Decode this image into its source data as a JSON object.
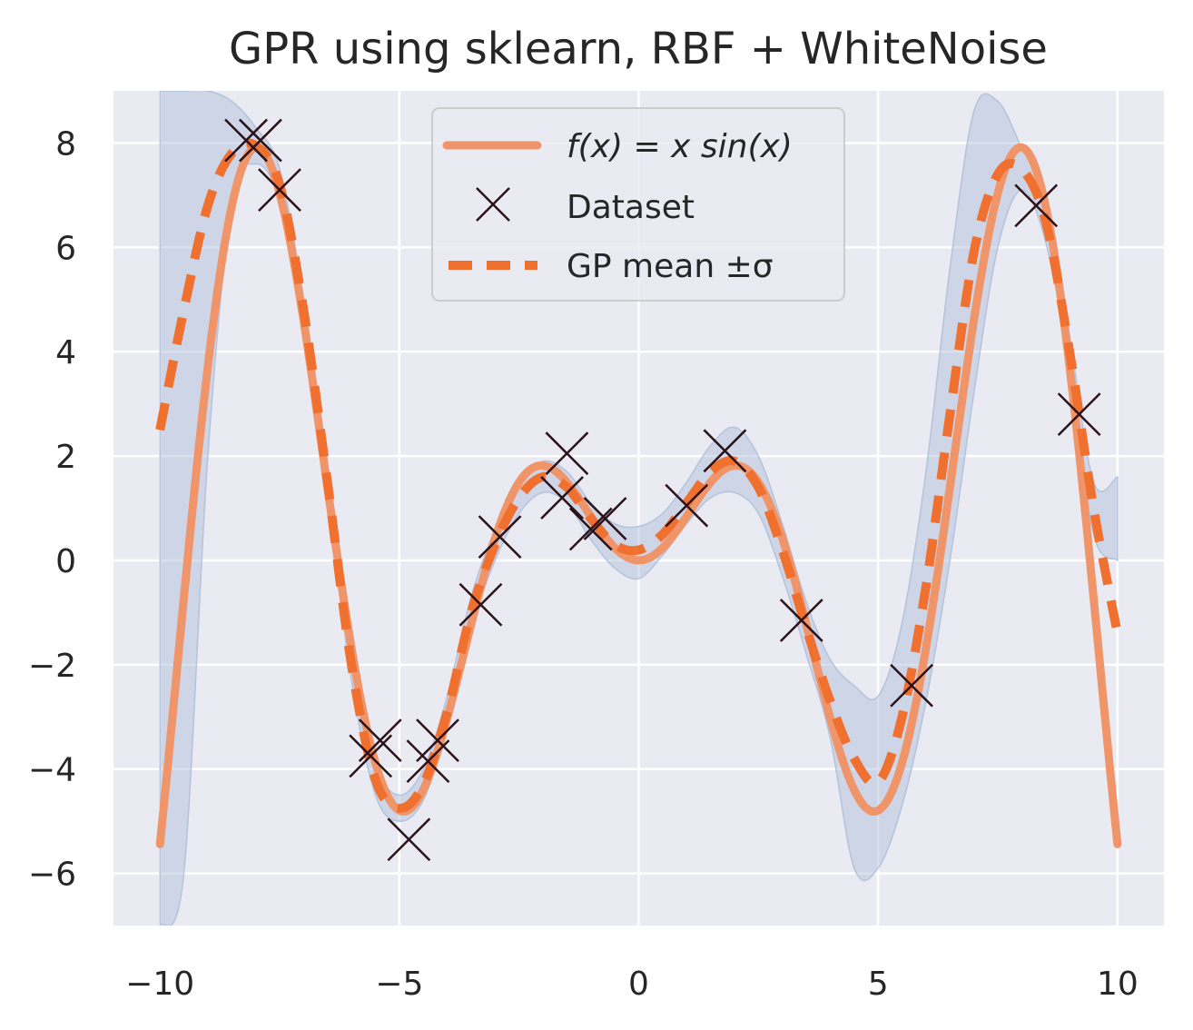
{
  "chart_data": {
    "type": "line",
    "title": "GPR using sklearn, RBF + WhiteNoise",
    "xlabel": "",
    "ylabel": "",
    "xlim": [
      -10.97,
      10.97
    ],
    "ylim": [
      -7.0,
      9.0
    ],
    "xticks": [
      -10,
      -5,
      0,
      5,
      10
    ],
    "xtick_labels": [
      "−10",
      "−5",
      "0",
      "5",
      "10"
    ],
    "yticks": [
      -6,
      -4,
      -2,
      0,
      2,
      4,
      6,
      8
    ],
    "ytick_labels": [
      "−6",
      "−4",
      "−2",
      "0",
      "2",
      "4",
      "6",
      "8"
    ],
    "grid": true,
    "legend_position": "top-center",
    "colors": {
      "background": "#eaeaf2",
      "grid": "#ffffff",
      "true_function": "#f0956a",
      "gp_mean": "#f07030",
      "band": "#aabcd8",
      "band_edge": "#b4c3dc",
      "markers": "#2a1218"
    },
    "legend": [
      {
        "label": "f(x) = x sin(x)",
        "style": "solid-line"
      },
      {
        "label": "Dataset",
        "style": "x-marker"
      },
      {
        "label": "GP mean ±σ",
        "style": "dashed-line"
      }
    ],
    "series": [
      {
        "name": "f(x) = x sin(x)",
        "function": "x*sin(x)",
        "x_range": [
          -10,
          10
        ]
      },
      {
        "name": "Dataset",
        "x": [
          -8.2,
          -7.9,
          -7.5,
          -5.6,
          -5.4,
          -4.8,
          -4.4,
          -4.2,
          -3.3,
          -2.9,
          -1.6,
          -1.5,
          -1.0,
          -0.7,
          1.0,
          1.8,
          3.4,
          5.7,
          8.3,
          9.2
        ],
        "y": [
          8.05,
          8.05,
          7.1,
          -3.75,
          -3.45,
          -5.35,
          -3.85,
          -3.45,
          -0.85,
          0.45,
          1.2,
          2.05,
          0.6,
          0.8,
          1.05,
          2.1,
          -1.15,
          -2.4,
          6.8,
          2.8
        ]
      },
      {
        "name": "GP mean ±σ",
        "x": [
          -10.0,
          -9.5,
          -9.0,
          -8.5,
          -8.0,
          -7.5,
          -7.0,
          -6.5,
          -6.0,
          -5.5,
          -5.0,
          -4.5,
          -4.0,
          -3.5,
          -3.0,
          -2.5,
          -2.0,
          -1.5,
          -1.0,
          -0.5,
          0.0,
          0.5,
          1.0,
          1.5,
          2.0,
          2.5,
          3.0,
          3.5,
          4.0,
          4.5,
          5.0,
          5.5,
          6.0,
          6.5,
          7.0,
          7.5,
          8.0,
          8.5,
          9.0,
          9.5,
          10.0
        ],
        "mean": [
          2.5,
          4.8,
          6.8,
          7.8,
          7.95,
          7.2,
          4.8,
          1.5,
          -2.0,
          -4.2,
          -4.75,
          -4.3,
          -2.9,
          -1.0,
          0.3,
          1.2,
          1.6,
          1.4,
          0.8,
          0.3,
          0.2,
          0.5,
          1.1,
          1.7,
          1.9,
          1.4,
          0.2,
          -1.3,
          -2.7,
          -3.8,
          -4.25,
          -3.0,
          -0.5,
          2.8,
          5.9,
          7.4,
          7.5,
          6.5,
          4.0,
          1.0,
          -1.4
        ],
        "upper": [
          9.0,
          9.0,
          9.0,
          8.8,
          8.3,
          7.5,
          5.0,
          1.8,
          -1.7,
          -3.9,
          -4.5,
          -4.0,
          -2.6,
          -0.7,
          0.6,
          1.5,
          1.9,
          1.7,
          1.1,
          0.7,
          0.65,
          0.9,
          1.5,
          2.2,
          2.55,
          2.0,
          0.7,
          -0.8,
          -1.9,
          -2.4,
          -2.6,
          -1.2,
          1.7,
          5.6,
          8.6,
          8.8,
          7.9,
          6.9,
          4.3,
          1.5,
          1.6
        ],
        "lower": [
          -7.0,
          -6.0,
          2.0,
          6.8,
          7.6,
          6.9,
          4.6,
          1.2,
          -2.3,
          -4.5,
          -5.0,
          -4.6,
          -3.2,
          -1.3,
          0.0,
          0.9,
          1.3,
          1.1,
          0.4,
          -0.15,
          -0.35,
          0.1,
          0.7,
          1.2,
          1.3,
          0.9,
          -0.3,
          -1.8,
          -3.4,
          -5.9,
          -5.9,
          -4.7,
          -2.7,
          0.0,
          3.2,
          6.0,
          7.1,
          6.1,
          3.7,
          0.5,
          0.0
        ]
      }
    ]
  }
}
